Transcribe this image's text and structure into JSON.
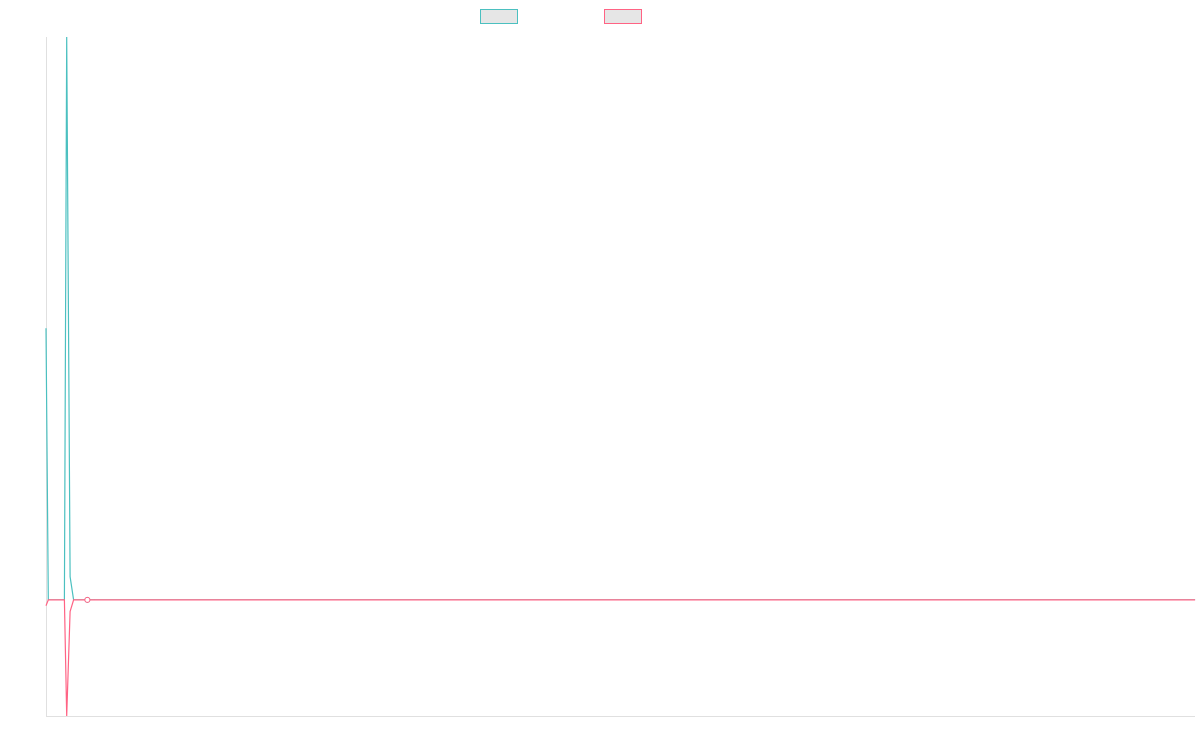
{
  "chart_data": {
    "type": "line",
    "title": "",
    "xlabel": "",
    "ylabel": "",
    "legend_position": "top",
    "grid": false,
    "xlim": [
      0,
      100
    ],
    "ylim": [
      -1,
      4.85
    ],
    "series": [
      {
        "color": "#4bc0c0",
        "x": [
          0,
          0.2,
          1.6,
          1.8,
          2.1,
          2.4,
          3.6,
          4.2,
          100
        ],
        "values": [
          2.34,
          0,
          0,
          4.85,
          0.2,
          0,
          0,
          0,
          0
        ]
      },
      {
        "color": "#ff6384",
        "x": [
          0,
          0.2,
          1.6,
          1.8,
          2.1,
          2.4,
          3.6,
          4.2,
          100
        ],
        "values": [
          -0.05,
          0,
          0,
          -1,
          -0.1,
          0,
          0,
          0,
          0
        ]
      }
    ]
  }
}
